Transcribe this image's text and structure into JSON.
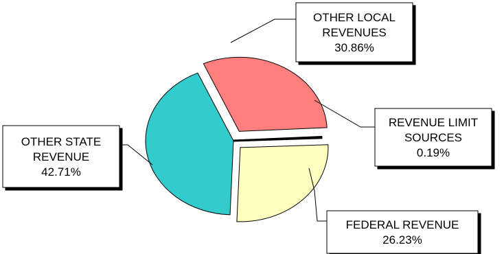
{
  "chart_data": {
    "type": "pie",
    "title": "",
    "slices": [
      {
        "label_lines": [
          "OTHER LOCAL",
          "REVENUES"
        ],
        "value_label": "30.86%",
        "value": 30.86,
        "color": "#ff7f7f"
      },
      {
        "label_lines": [
          "REVENUE LIMIT",
          "SOURCES"
        ],
        "value_label": "0.19%",
        "value": 0.19,
        "color": "#ffffc0"
      },
      {
        "label_lines": [
          "FEDERAL REVENUE"
        ],
        "value_label": "26.23%",
        "value": 26.23,
        "color": "#ffffc0"
      },
      {
        "label_lines": [
          "OTHER STATE",
          "REVENUE"
        ],
        "value_label": "42.71%",
        "value": 42.71,
        "color": "#33cccc"
      }
    ],
    "exploded": true,
    "legend": "none"
  }
}
